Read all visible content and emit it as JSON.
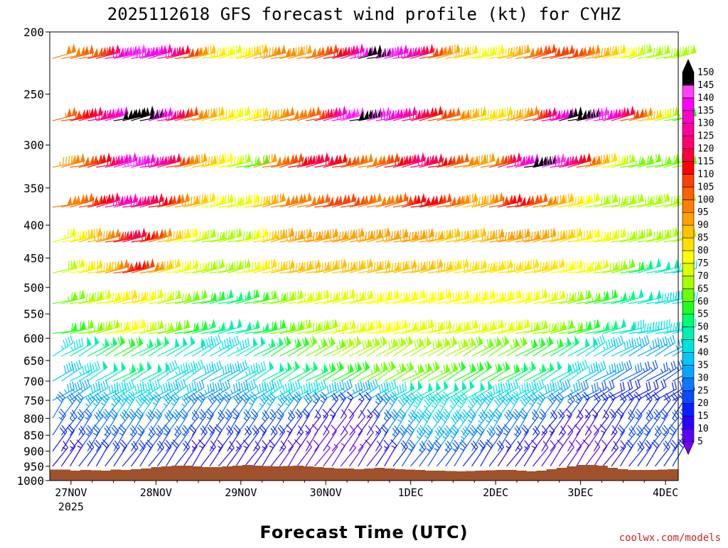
{
  "chart_data": {
    "type": "wind-barb-time-height",
    "title": "2025112618 GFS forecast wind profile (kt) for CYHZ",
    "xlabel": "Forecast Time (UTC)",
    "credit": "coolwx.com/models",
    "credit_color": "#cc2222",
    "ground_color": "#a0522d",
    "x_ticks": [
      "27NOV",
      "28NOV",
      "29NOV",
      "30NOV",
      "1DEC",
      "2DEC",
      "3DEC",
      "4DEC"
    ],
    "x_year": "2025",
    "y_ticks": [
      "200",
      "250",
      "300",
      "350",
      "400",
      "450",
      "500",
      "550",
      "600",
      "650",
      "700",
      "750",
      "800",
      "850",
      "900",
      "950",
      "1000"
    ],
    "ylim": [
      1000,
      200
    ],
    "y_scale": "log-pressure",
    "colorbar": {
      "levels": [
        5,
        10,
        15,
        20,
        25,
        30,
        35,
        40,
        45,
        50,
        55,
        60,
        65,
        70,
        75,
        80,
        85,
        90,
        95,
        100,
        105,
        110,
        115,
        120,
        125,
        130,
        135,
        140,
        145,
        150
      ],
      "colors": [
        "#7a00ff",
        "#5a00ff",
        "#2c00ff",
        "#0a1fff",
        "#0a4cff",
        "#0a78ff",
        "#00a8ff",
        "#00c8ff",
        "#00e4e0",
        "#00f0b0",
        "#00ff70",
        "#20ff20",
        "#70ff00",
        "#a8ff00",
        "#e0ff00",
        "#ffff00",
        "#ffe000",
        "#ffc000",
        "#ffa000",
        "#ff8000",
        "#ff6000",
        "#ff4000",
        "#ff0000",
        "#ff0040",
        "#ff0070",
        "#ff00a0",
        "#ff00c8",
        "#ff00ff",
        "#ff40ff",
        "#000000"
      ],
      "labels": [
        "5",
        "10",
        "15",
        "20",
        "25",
        "30",
        "35",
        "40",
        "45",
        "50",
        "55",
        "60",
        "65",
        "70",
        "75",
        "80",
        "85",
        "90",
        "95",
        "100",
        "105",
        "110",
        "115",
        "120",
        "125",
        "130",
        "135",
        "140",
        "145",
        "150"
      ]
    },
    "barb_levels": [
      220,
      275,
      325,
      375,
      425,
      475,
      530,
      590,
      640,
      700,
      750,
      800,
      850,
      900,
      950
    ],
    "time_steps": 72,
    "wind_speed_kt": [
      [
        100,
        100,
        105,
        105,
        110,
        120,
        130,
        140,
        145,
        140,
        140,
        135,
        130,
        120,
        110,
        100,
        90,
        85,
        80,
        75,
        80,
        85,
        90,
        95,
        100,
        100,
        95,
        95,
        100,
        105,
        110,
        115,
        120,
        130,
        140,
        150,
        150,
        145,
        140,
        135,
        130,
        120,
        110,
        100,
        95,
        90,
        85,
        80,
        75,
        80,
        85,
        90,
        95,
        100,
        105,
        110,
        110,
        110,
        110,
        105,
        100,
        95,
        90,
        85,
        80,
        75,
        70,
        70,
        70,
        70,
        70,
        70
      ],
      [
        105,
        110,
        115,
        120,
        125,
        130,
        140,
        150,
        150,
        150,
        150,
        140,
        130,
        120,
        110,
        100,
        95,
        90,
        85,
        80,
        75,
        80,
        85,
        90,
        95,
        100,
        100,
        100,
        105,
        110,
        120,
        130,
        140,
        145,
        150,
        150,
        145,
        140,
        135,
        130,
        125,
        120,
        115,
        110,
        105,
        100,
        95,
        90,
        85,
        85,
        85,
        90,
        95,
        100,
        110,
        120,
        130,
        140,
        150,
        150,
        150,
        145,
        140,
        130,
        120,
        110,
        100,
        90,
        80,
        70,
        65,
        60
      ],
      [
        95,
        100,
        105,
        110,
        115,
        120,
        130,
        140,
        145,
        140,
        135,
        130,
        120,
        110,
        100,
        95,
        90,
        85,
        80,
        75,
        70,
        65,
        60,
        95,
        100,
        105,
        110,
        115,
        120,
        120,
        120,
        115,
        110,
        105,
        100,
        100,
        105,
        110,
        115,
        120,
        125,
        125,
        120,
        115,
        110,
        105,
        100,
        95,
        95,
        100,
        110,
        120,
        130,
        140,
        150,
        150,
        145,
        135,
        125,
        115,
        105,
        95,
        85,
        75,
        70,
        65,
        65,
        65,
        65,
        65,
        65,
        65
      ],
      [
        100,
        100,
        105,
        110,
        115,
        120,
        130,
        135,
        130,
        125,
        120,
        115,
        110,
        100,
        95,
        90,
        85,
        80,
        75,
        75,
        75,
        80,
        85,
        90,
        95,
        100,
        100,
        100,
        100,
        105,
        110,
        110,
        110,
        110,
        105,
        100,
        100,
        100,
        105,
        110,
        115,
        115,
        115,
        110,
        105,
        100,
        95,
        90,
        95,
        100,
        110,
        115,
        115,
        110,
        105,
        100,
        95,
        90,
        85,
        80,
        75,
        70,
        70,
        70,
        70,
        70,
        70,
        70,
        70,
        70,
        70,
        70
      ],
      [
        75,
        80,
        85,
        90,
        95,
        100,
        110,
        120,
        120,
        115,
        110,
        100,
        90,
        85,
        80,
        75,
        70,
        70,
        70,
        70,
        70,
        75,
        80,
        85,
        90,
        95,
        95,
        95,
        95,
        95,
        95,
        95,
        95,
        95,
        95,
        95,
        95,
        95,
        95,
        95,
        95,
        95,
        95,
        90,
        90,
        90,
        90,
        90,
        90,
        95,
        95,
        95,
        95,
        95,
        95,
        95,
        90,
        90,
        85,
        85,
        80,
        80,
        75,
        75,
        70,
        70,
        70,
        70,
        70,
        70,
        70,
        70
      ],
      [
        70,
        75,
        80,
        85,
        85,
        90,
        100,
        110,
        115,
        110,
        100,
        90,
        85,
        80,
        75,
        75,
        70,
        70,
        70,
        70,
        70,
        75,
        80,
        85,
        85,
        90,
        90,
        90,
        90,
        90,
        90,
        90,
        90,
        90,
        90,
        90,
        90,
        90,
        90,
        90,
        90,
        90,
        90,
        90,
        85,
        85,
        85,
        85,
        85,
        85,
        85,
        85,
        85,
        85,
        85,
        85,
        85,
        80,
        80,
        80,
        75,
        75,
        70,
        70,
        65,
        60,
        55,
        50,
        50,
        50,
        45,
        45
      ],
      [
        65,
        65,
        70,
        70,
        75,
        75,
        80,
        85,
        85,
        80,
        75,
        75,
        70,
        70,
        65,
        65,
        60,
        60,
        55,
        55,
        55,
        60,
        60,
        65,
        65,
        70,
        70,
        75,
        75,
        75,
        75,
        75,
        75,
        75,
        75,
        80,
        80,
        80,
        80,
        80,
        80,
        80,
        80,
        80,
        80,
        80,
        80,
        80,
        80,
        80,
        80,
        80,
        80,
        80,
        75,
        75,
        75,
        70,
        70,
        65,
        65,
        60,
        60,
        55,
        55,
        50,
        50,
        50,
        45,
        45,
        45,
        45
      ],
      [
        60,
        60,
        65,
        65,
        70,
        70,
        75,
        80,
        80,
        75,
        70,
        70,
        65,
        65,
        60,
        60,
        55,
        55,
        50,
        50,
        50,
        55,
        55,
        60,
        60,
        65,
        65,
        70,
        70,
        70,
        70,
        75,
        75,
        75,
        75,
        80,
        80,
        80,
        80,
        75,
        75,
        75,
        75,
        75,
        75,
        75,
        75,
        75,
        75,
        75,
        75,
        75,
        75,
        70,
        70,
        70,
        70,
        65,
        65,
        60,
        60,
        55,
        55,
        50,
        50,
        45,
        45,
        45,
        45,
        45,
        45,
        45
      ],
      [
        45,
        45,
        50,
        50,
        55,
        55,
        60,
        60,
        60,
        55,
        55,
        55,
        50,
        50,
        50,
        50,
        45,
        45,
        45,
        45,
        45,
        50,
        50,
        55,
        55,
        60,
        60,
        60,
        65,
        65,
        65,
        65,
        70,
        70,
        70,
        70,
        70,
        70,
        70,
        70,
        70,
        70,
        70,
        70,
        70,
        70,
        70,
        65,
        65,
        65,
        65,
        65,
        65,
        60,
        60,
        60,
        60,
        55,
        55,
        50,
        50,
        45,
        45,
        40,
        40,
        40,
        35,
        35,
        35,
        35,
        35,
        35
      ],
      [
        40,
        40,
        45,
        45,
        50,
        50,
        50,
        55,
        55,
        50,
        50,
        50,
        45,
        45,
        45,
        45,
        40,
        40,
        40,
        40,
        40,
        45,
        45,
        50,
        50,
        55,
        55,
        55,
        55,
        55,
        60,
        60,
        60,
        60,
        60,
        65,
        65,
        65,
        65,
        65,
        65,
        65,
        65,
        65,
        65,
        60,
        60,
        60,
        60,
        60,
        60,
        60,
        55,
        55,
        55,
        55,
        50,
        50,
        45,
        45,
        40,
        40,
        35,
        35,
        30,
        30,
        25,
        25,
        25,
        25,
        25,
        25
      ],
      [
        35,
        35,
        35,
        40,
        40,
        40,
        45,
        45,
        45,
        45,
        45,
        40,
        40,
        40,
        40,
        35,
        35,
        35,
        35,
        35,
        35,
        40,
        40,
        40,
        45,
        45,
        45,
        45,
        45,
        45,
        40,
        40,
        35,
        35,
        35,
        40,
        40,
        45,
        45,
        50,
        50,
        50,
        50,
        50,
        50,
        50,
        50,
        50,
        50,
        45,
        45,
        45,
        45,
        45,
        45,
        40,
        40,
        35,
        35,
        30,
        30,
        25,
        25,
        20,
        20,
        20,
        20,
        20,
        20,
        20,
        20,
        20
      ],
      [
        30,
        30,
        30,
        35,
        35,
        35,
        35,
        40,
        40,
        40,
        40,
        35,
        35,
        35,
        35,
        30,
        30,
        30,
        30,
        30,
        30,
        30,
        35,
        35,
        35,
        35,
        35,
        30,
        30,
        25,
        25,
        20,
        20,
        15,
        15,
        20,
        25,
        30,
        35,
        40,
        40,
        45,
        45,
        45,
        45,
        45,
        45,
        45,
        40,
        40,
        40,
        40,
        40,
        40,
        35,
        35,
        30,
        30,
        25,
        25,
        20,
        20,
        20,
        20,
        20,
        20,
        20,
        20,
        20,
        20,
        20,
        20
      ],
      [
        25,
        25,
        25,
        25,
        30,
        30,
        30,
        30,
        30,
        30,
        30,
        30,
        30,
        30,
        30,
        25,
        25,
        25,
        25,
        25,
        25,
        25,
        25,
        25,
        25,
        25,
        25,
        20,
        20,
        15,
        15,
        15,
        10,
        10,
        10,
        15,
        20,
        25,
        30,
        35,
        35,
        40,
        40,
        40,
        40,
        40,
        40,
        35,
        35,
        35,
        35,
        30,
        30,
        30,
        25,
        25,
        20,
        20,
        15,
        15,
        15,
        15,
        15,
        20,
        20,
        25,
        25,
        25,
        25,
        25,
        25,
        25
      ],
      [
        20,
        20,
        20,
        25,
        25,
        25,
        25,
        25,
        25,
        25,
        25,
        25,
        25,
        25,
        25,
        20,
        20,
        20,
        20,
        20,
        20,
        20,
        20,
        20,
        20,
        20,
        15,
        15,
        15,
        10,
        10,
        10,
        10,
        10,
        10,
        10,
        15,
        20,
        25,
        30,
        30,
        35,
        35,
        35,
        35,
        35,
        35,
        30,
        30,
        30,
        25,
        25,
        25,
        20,
        20,
        15,
        15,
        15,
        10,
        10,
        10,
        10,
        15,
        15,
        20,
        25,
        25,
        25,
        25,
        25,
        25,
        25
      ],
      [
        15,
        15,
        15,
        20,
        20,
        20,
        20,
        20,
        20,
        20,
        20,
        20,
        20,
        20,
        20,
        15,
        15,
        15,
        15,
        15,
        15,
        15,
        15,
        15,
        15,
        15,
        10,
        10,
        10,
        10,
        5,
        5,
        5,
        5,
        5,
        10,
        10,
        15,
        15,
        20,
        25,
        25,
        25,
        25,
        25,
        25,
        25,
        20,
        20,
        20,
        20,
        15,
        15,
        15,
        15,
        10,
        10,
        10,
        10,
        10,
        10,
        10,
        10,
        15,
        15,
        20,
        20,
        20,
        20,
        20,
        20,
        20
      ]
    ]
  }
}
